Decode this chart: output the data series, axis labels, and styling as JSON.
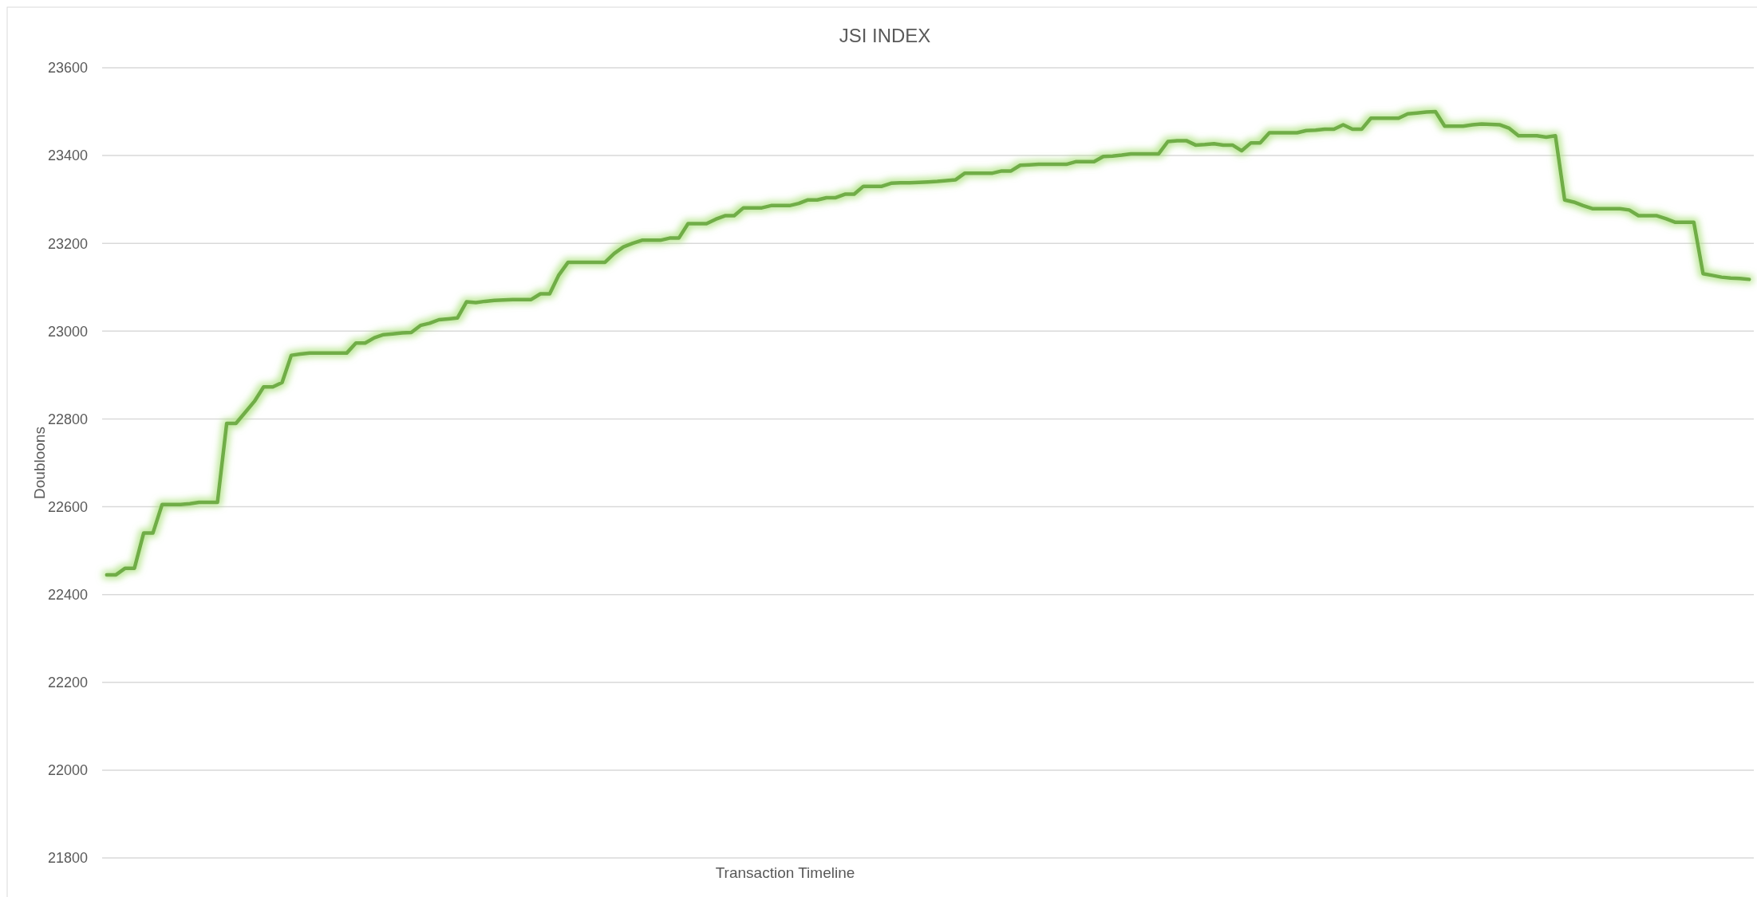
{
  "chart_data": {
    "type": "line",
    "title": "JSI INDEX",
    "xlabel": "Transaction Timeline",
    "ylabel": "Doubloons",
    "categories": [
      null,
      null,
      null,
      null,
      null,
      null,
      null,
      null,
      null,
      null,
      null,
      null,
      null,
      null,
      null,
      null,
      null,
      null,
      null,
      null,
      null,
      null,
      null,
      null,
      null,
      null,
      null,
      null,
      null,
      null,
      null,
      null,
      null,
      null,
      null,
      null,
      null,
      null,
      null,
      null,
      null,
      null,
      null,
      null,
      null,
      null,
      null,
      null,
      null,
      null,
      null,
      null,
      null,
      null,
      null,
      null,
      null,
      null,
      null,
      null,
      null,
      null,
      null,
      null,
      null,
      null,
      null,
      null,
      null,
      null,
      null,
      null,
      null,
      null,
      null,
      null,
      null,
      null,
      null,
      null,
      null,
      null,
      null,
      null,
      null,
      null,
      null,
      null,
      null,
      null,
      null,
      null,
      null,
      null,
      null,
      null,
      null,
      null,
      null,
      null,
      null,
      null,
      null,
      null,
      null,
      null,
      null,
      null,
      null,
      null,
      null,
      null,
      null,
      null,
      null,
      null,
      null,
      null,
      null,
      null,
      null,
      null,
      null,
      null,
      null,
      null,
      null,
      null,
      null,
      null,
      null,
      null,
      null,
      null,
      null,
      null,
      null,
      null,
      null,
      null,
      null,
      null,
      null,
      null,
      null,
      null,
      null,
      null,
      null,
      null,
      null,
      null,
      null,
      null,
      null,
      null,
      null,
      null,
      null,
      null,
      null,
      null,
      null,
      null,
      null,
      null,
      null,
      null,
      null,
      null,
      null,
      null,
      null,
      null,
      null,
      null,
      null,
      null,
      null
    ],
    "series": [
      {
        "color": "#70ad47",
        "values": [
          22445,
          22445,
          22460,
          22460,
          22540,
          22540,
          22605,
          22605,
          22605,
          22607,
          22610,
          22610,
          22610,
          22790,
          22790,
          22815,
          22840,
          22873,
          22873,
          22883,
          22945,
          22948,
          22950,
          22950,
          22950,
          22950,
          22950,
          22973,
          22973,
          22985,
          22992,
          22994,
          22996,
          22997,
          23013,
          23018,
          23026,
          23028,
          23030,
          23067,
          23065,
          23068,
          23070,
          23071,
          23072,
          23072,
          23072,
          23085,
          23085,
          23128,
          23157,
          23157,
          23157,
          23157,
          23157,
          23177,
          23192,
          23200,
          23207,
          23207,
          23207,
          23212,
          23212,
          23245,
          23245,
          23245,
          23255,
          23263,
          23263,
          23281,
          23281,
          23281,
          23286,
          23286,
          23286,
          23291,
          23299,
          23299,
          23304,
          23304,
          23312,
          23312,
          23330,
          23330,
          23330,
          23337,
          23338,
          23338,
          23339,
          23340,
          23341,
          23343,
          23345,
          23360,
          23360,
          23360,
          23360,
          23365,
          23365,
          23378,
          23379,
          23380,
          23380,
          23380,
          23380,
          23386,
          23386,
          23386,
          23398,
          23399,
          23401,
          23404,
          23404,
          23404,
          23404,
          23432,
          23434,
          23434,
          23424,
          23425,
          23427,
          23424,
          23424,
          23411,
          23429,
          23429,
          23452,
          23452,
          23452,
          23452,
          23457,
          23458,
          23460,
          23460,
          23470,
          23460,
          23460,
          23485,
          23485,
          23485,
          23485,
          23495,
          23497,
          23499,
          23500,
          23467,
          23467,
          23467,
          23470,
          23472,
          23471,
          23470,
          23462,
          23445,
          23445,
          23445,
          23442,
          23445,
          23299,
          23294,
          23286,
          23279,
          23279,
          23279,
          23279,
          23276,
          23263,
          23263,
          23263,
          23256,
          23248,
          23248,
          23248,
          23131,
          23127,
          23123,
          23121,
          23120,
          23118
        ]
      }
    ],
    "ylim": [
      21800,
      23600
    ],
    "yticks": [
      21800,
      22000,
      22200,
      22400,
      22600,
      22800,
      23000,
      23200,
      23400,
      23600
    ],
    "grid": "y",
    "marker": "none",
    "line_style": "solid"
  }
}
